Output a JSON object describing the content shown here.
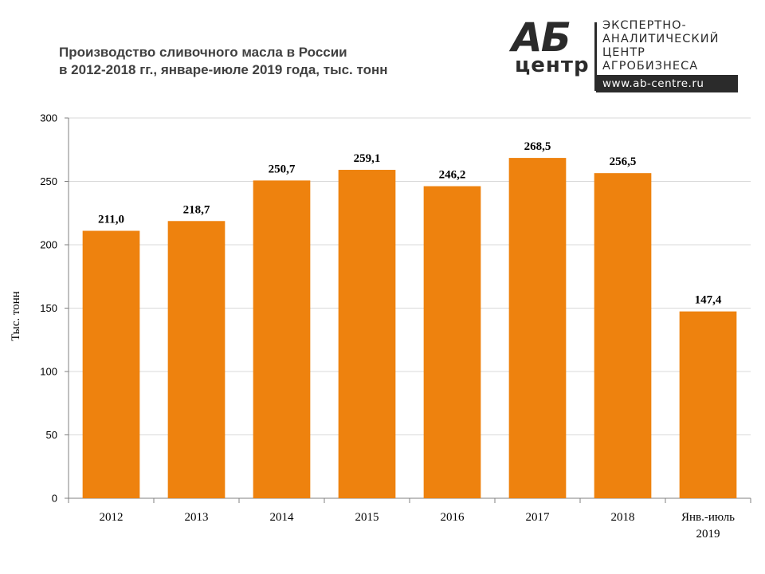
{
  "logo": {
    "mark": "АБ",
    "mark_sub": "центр",
    "lines": [
      "ЭКСПЕРТНО-",
      "АНАЛИТИЧЕСКИЙ",
      "ЦЕНТР",
      "АГРОБИЗНЕСА"
    ],
    "url": "www.ab-centre.ru"
  },
  "chart_data": {
    "type": "bar",
    "title_lines": [
      "Производство сливочного масла в России",
      "в 2012-2018 гг., январе-июле 2019 года, тыс. тонн"
    ],
    "ylabel": "Тыс. тонн",
    "xlabel": "",
    "ylim": [
      0,
      300
    ],
    "yticks": [
      "0",
      "50",
      "100",
      "150",
      "200",
      "250",
      "300"
    ],
    "grid": true,
    "bar_color": "#EE820E",
    "categories": [
      [
        "2012"
      ],
      [
        "2013"
      ],
      [
        "2014"
      ],
      [
        "2015"
      ],
      [
        "2016"
      ],
      [
        "2017"
      ],
      [
        "2018"
      ],
      [
        "Янв.-июль",
        "2019"
      ]
    ],
    "values": [
      211.0,
      218.7,
      250.7,
      259.1,
      246.2,
      268.5,
      256.5,
      147.4
    ],
    "value_labels": [
      "211,0",
      "218,7",
      "250,7",
      "259,1",
      "246,2",
      "268,5",
      "256,5",
      "147,4"
    ]
  }
}
